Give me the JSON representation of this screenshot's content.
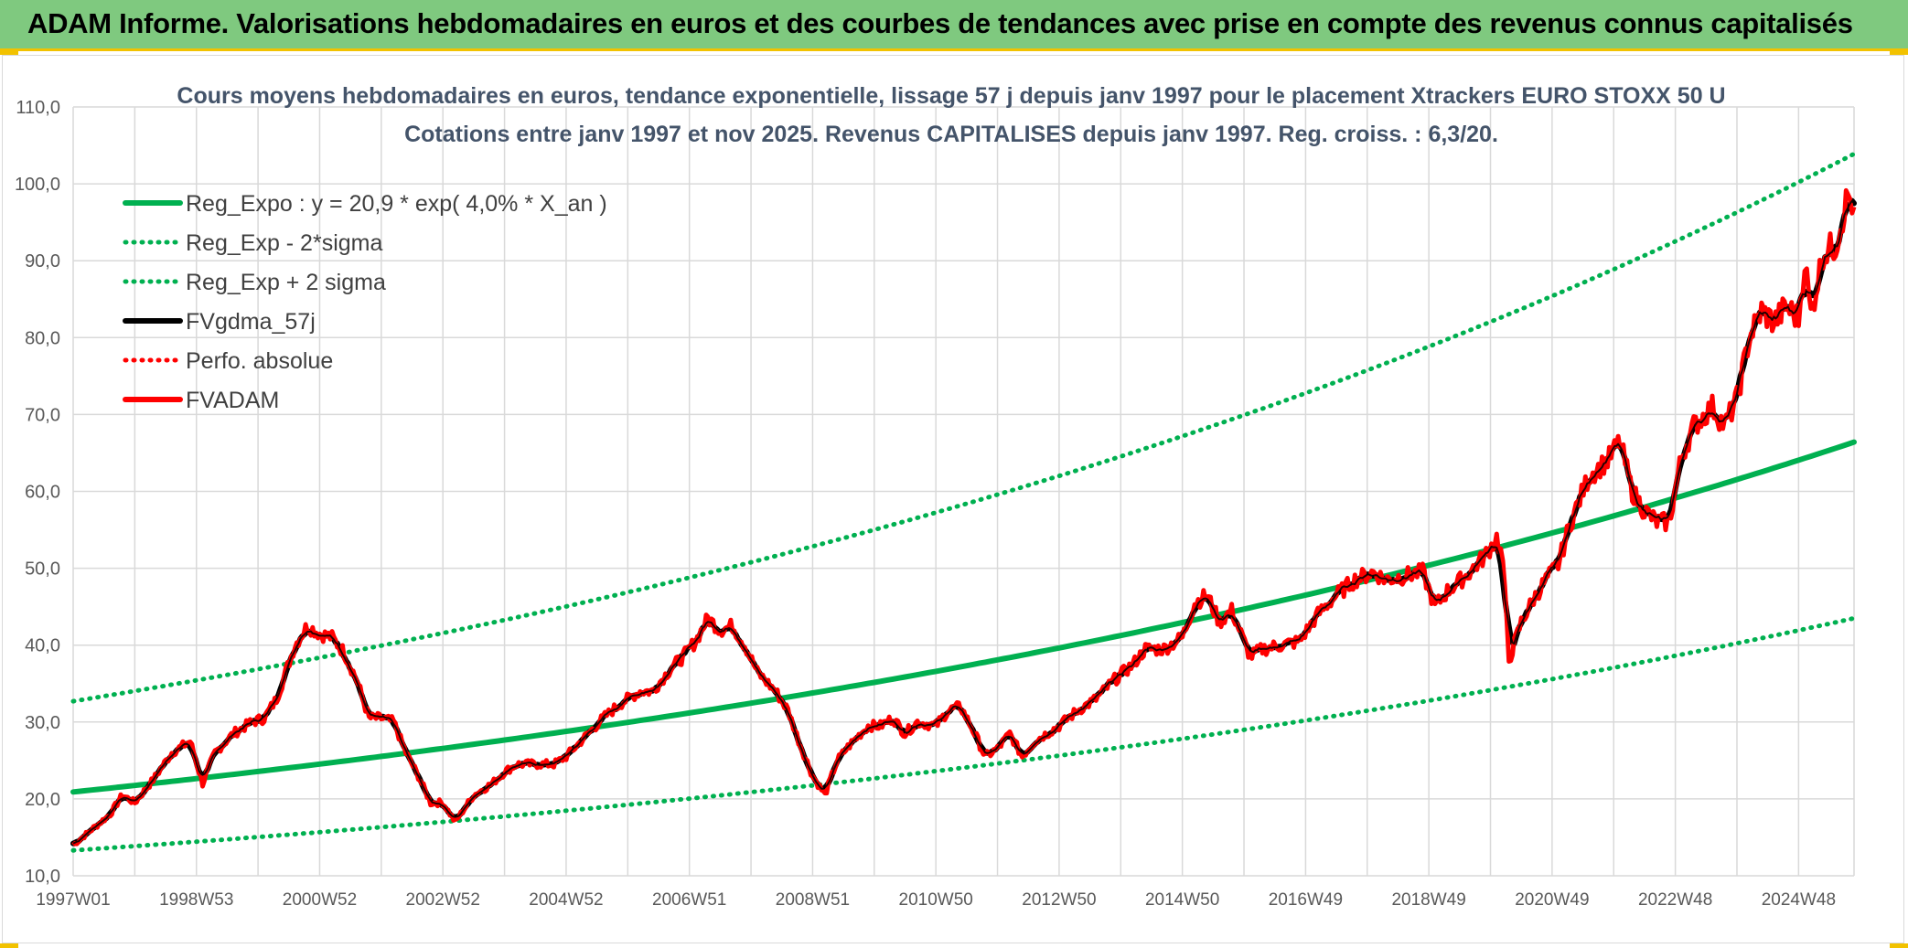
{
  "header": {
    "title": "ADAM Informe. Valorisations hebdomadaires en euros et des courbes de tendances avec prise en compte des revenus connus capitalisés",
    "background": "#7fc97f",
    "accent": "#f2c200"
  },
  "chart_data": {
    "type": "line",
    "title": "Cours moyens hebdomadaires en euros, tendance exponentielle, lissage 57 j depuis janv 1997 pour le placement Xtrackers EURO STOXX 50 U",
    "subtitle": "Cotations entre janv 1997 et nov 2025. Revenus CAPITALISES depuis janv 1997. Reg. croiss. : 6,3/20.",
    "xlabel": "",
    "ylabel": "",
    "ylim": [
      10,
      110
    ],
    "xlim": [
      1997.0,
      2025.9
    ],
    "grid": true,
    "legend_position": "top-left",
    "y_ticks": [
      "10,0",
      "20,0",
      "30,0",
      "40,0",
      "50,0",
      "60,0",
      "70,0",
      "80,0",
      "90,0",
      "100,0",
      "110,0"
    ],
    "x_ticks": [
      {
        "label": "1997W01",
        "x": 1997.0
      },
      {
        "label": "1998W53",
        "x": 1999.0
      },
      {
        "label": "2000W52",
        "x": 2001.0
      },
      {
        "label": "2002W52",
        "x": 2003.0
      },
      {
        "label": "2004W52",
        "x": 2005.0
      },
      {
        "label": "2006W51",
        "x": 2007.0
      },
      {
        "label": "2008W51",
        "x": 2009.0
      },
      {
        "label": "2010W50",
        "x": 2011.0
      },
      {
        "label": "2012W50",
        "x": 2013.0
      },
      {
        "label": "2014W50",
        "x": 2015.0
      },
      {
        "label": "2016W49",
        "x": 2017.0
      },
      {
        "label": "2018W49",
        "x": 2019.0
      },
      {
        "label": "2020W49",
        "x": 2021.0
      },
      {
        "label": "2022W48",
        "x": 2023.0
      },
      {
        "label": "2024W48",
        "x": 2025.0
      }
    ],
    "series": [
      {
        "name": "Reg_Expo : y = 20,9 * exp( 4,0% *  X_an )",
        "color": "#00b050",
        "style": "solid",
        "kind": "exp",
        "a": 20.9,
        "k": 0.04
      },
      {
        "name": "Reg_Exp - 2*sigma",
        "color": "#00b050",
        "style": "dotted",
        "kind": "exp",
        "a": 13.3,
        "k": 0.041
      },
      {
        "name": "Reg_Exp + 2 sigma",
        "color": "#00b050",
        "style": "dotted",
        "kind": "exp",
        "a": 32.7,
        "k": 0.04
      },
      {
        "name": "FVgdma_57j",
        "color": "#000000",
        "style": "solid",
        "kind": "smooth"
      },
      {
        "name": "Perfo. absolue",
        "color": "#ff0000",
        "style": "dotted",
        "kind": "none"
      },
      {
        "name": "FVADAM",
        "color": "#ff0000",
        "style": "solid",
        "kind": "data",
        "points": [
          [
            1997.0,
            14.0
          ],
          [
            1997.3,
            16.0
          ],
          [
            1997.6,
            18.0
          ],
          [
            1997.8,
            20.5
          ],
          [
            1998.0,
            19.5
          ],
          [
            1998.3,
            22.5
          ],
          [
            1998.6,
            26.0
          ],
          [
            1998.9,
            27.5
          ],
          [
            1999.1,
            22.0
          ],
          [
            1999.3,
            26.0
          ],
          [
            1999.6,
            28.5
          ],
          [
            1999.9,
            30.0
          ],
          [
            2000.1,
            30.5
          ],
          [
            2000.3,
            33.0
          ],
          [
            2000.6,
            40.0
          ],
          [
            2000.8,
            42.5
          ],
          [
            2001.0,
            41.5
          ],
          [
            2001.2,
            41.0
          ],
          [
            2001.4,
            39.0
          ],
          [
            2001.6,
            35.5
          ],
          [
            2001.8,
            30.5
          ],
          [
            2002.0,
            30.5
          ],
          [
            2002.2,
            30.0
          ],
          [
            2002.4,
            26.0
          ],
          [
            2002.6,
            23.0
          ],
          [
            2002.8,
            19.5
          ],
          [
            2003.0,
            19.5
          ],
          [
            2003.2,
            17.0
          ],
          [
            2003.5,
            20.5
          ],
          [
            2003.8,
            22.0
          ],
          [
            2004.0,
            23.5
          ],
          [
            2004.2,
            24.5
          ],
          [
            2004.5,
            24.5
          ],
          [
            2004.8,
            24.5
          ],
          [
            2005.0,
            25.5
          ],
          [
            2005.3,
            28.0
          ],
          [
            2005.6,
            30.5
          ],
          [
            2005.9,
            32.5
          ],
          [
            2006.2,
            34.0
          ],
          [
            2006.4,
            34.0
          ],
          [
            2006.7,
            37.0
          ],
          [
            2006.9,
            38.5
          ],
          [
            2007.1,
            40.5
          ],
          [
            2007.3,
            43.5
          ],
          [
            2007.5,
            42.0
          ],
          [
            2007.7,
            42.5
          ],
          [
            2007.9,
            40.0
          ],
          [
            2008.1,
            36.5
          ],
          [
            2008.4,
            34.0
          ],
          [
            2008.6,
            31.5
          ],
          [
            2008.8,
            27.0
          ],
          [
            2009.0,
            23.0
          ],
          [
            2009.2,
            20.5
          ],
          [
            2009.4,
            25.0
          ],
          [
            2009.6,
            27.0
          ],
          [
            2009.9,
            29.5
          ],
          [
            2010.1,
            29.5
          ],
          [
            2010.3,
            30.5
          ],
          [
            2010.5,
            28.5
          ],
          [
            2010.7,
            30.0
          ],
          [
            2011.0,
            29.5
          ],
          [
            2011.2,
            31.5
          ],
          [
            2011.4,
            32.0
          ],
          [
            2011.6,
            29.0
          ],
          [
            2011.8,
            25.5
          ],
          [
            2012.0,
            26.5
          ],
          [
            2012.2,
            28.5
          ],
          [
            2012.4,
            25.5
          ],
          [
            2012.6,
            27.5
          ],
          [
            2012.8,
            28.5
          ],
          [
            2013.0,
            29.5
          ],
          [
            2013.3,
            31.5
          ],
          [
            2013.6,
            33.0
          ],
          [
            2013.9,
            35.5
          ],
          [
            2014.2,
            37.5
          ],
          [
            2014.4,
            39.5
          ],
          [
            2014.7,
            39.5
          ],
          [
            2015.0,
            41.0
          ],
          [
            2015.2,
            45.5
          ],
          [
            2015.4,
            46.5
          ],
          [
            2015.6,
            43.0
          ],
          [
            2015.8,
            44.5
          ],
          [
            2016.1,
            38.5
          ],
          [
            2016.3,
            39.5
          ],
          [
            2016.6,
            40.0
          ],
          [
            2016.9,
            40.5
          ],
          [
            2017.2,
            44.0
          ],
          [
            2017.5,
            46.5
          ],
          [
            2017.8,
            48.5
          ],
          [
            2018.1,
            49.5
          ],
          [
            2018.3,
            48.5
          ],
          [
            2018.6,
            49.0
          ],
          [
            2018.9,
            49.5
          ],
          [
            2019.1,
            45.0
          ],
          [
            2019.3,
            47.0
          ],
          [
            2019.6,
            49.0
          ],
          [
            2019.9,
            51.5
          ],
          [
            2020.1,
            54.0
          ],
          [
            2020.2,
            51.0
          ],
          [
            2020.3,
            38.0
          ],
          [
            2020.5,
            43.0
          ],
          [
            2020.7,
            46.0
          ],
          [
            2020.9,
            48.5
          ],
          [
            2021.1,
            50.5
          ],
          [
            2021.3,
            56.0
          ],
          [
            2021.6,
            62.0
          ],
          [
            2021.9,
            64.0
          ],
          [
            2022.1,
            66.5
          ],
          [
            2022.3,
            60.0
          ],
          [
            2022.5,
            57.5
          ],
          [
            2022.7,
            56.0
          ],
          [
            2022.9,
            56.0
          ],
          [
            2023.1,
            64.5
          ],
          [
            2023.3,
            68.5
          ],
          [
            2023.6,
            71.0
          ],
          [
            2023.8,
            68.5
          ],
          [
            2024.0,
            72.0
          ],
          [
            2024.2,
            80.0
          ],
          [
            2024.4,
            83.5
          ],
          [
            2024.6,
            82.0
          ],
          [
            2024.8,
            84.0
          ],
          [
            2025.0,
            82.5
          ],
          [
            2025.1,
            90.0
          ],
          [
            2025.2,
            83.0
          ],
          [
            2025.4,
            91.0
          ],
          [
            2025.6,
            92.0
          ],
          [
            2025.8,
            98.5
          ],
          [
            2025.9,
            97.0
          ]
        ]
      }
    ]
  }
}
